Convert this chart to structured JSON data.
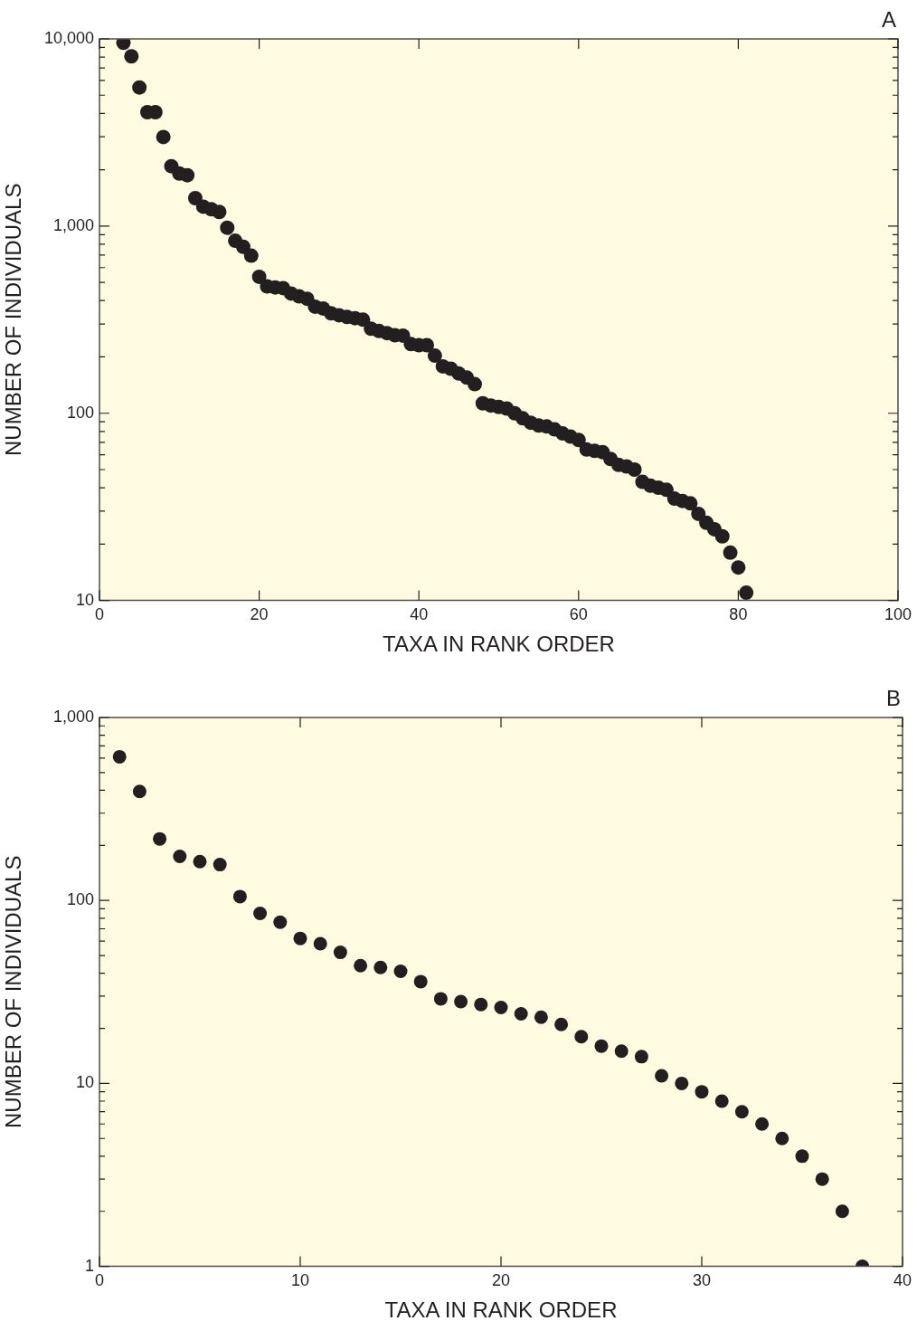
{
  "chart_data": [
    {
      "type": "scatter",
      "xlabel": "TAXA IN RANK ORDER",
      "ylabel": "NUMBER OF INDIVIDUALS",
      "annotations": [
        "A"
      ],
      "log": "y",
      "marker": "circle",
      "x": [
        3,
        4,
        5,
        6,
        7,
        8,
        9,
        10,
        11,
        12,
        13,
        14,
        15,
        16,
        17,
        18,
        19,
        20,
        21,
        22,
        23,
        24,
        25,
        26,
        27,
        28,
        29,
        30,
        31,
        32,
        33,
        34,
        35,
        36,
        37,
        38,
        39,
        40,
        41,
        42,
        43,
        44,
        45,
        46,
        47,
        48,
        49,
        50,
        51,
        52,
        53,
        54,
        55,
        56,
        57,
        58,
        59,
        60,
        61,
        62,
        63,
        64,
        65,
        66,
        67,
        68,
        69,
        70,
        71,
        72,
        73,
        74,
        75,
        76,
        77,
        78,
        79,
        80,
        81
      ],
      "series": [
        {
          "color": "#231f20",
          "values": [
            9530,
            8070,
            5500,
            4060,
            4060,
            2990,
            2090,
            1910,
            1870,
            1410,
            1270,
            1230,
            1190,
            980,
            835,
            775,
            695,
            536,
            476,
            470,
            466,
            436,
            421,
            409,
            371,
            363,
            342,
            334,
            327,
            322,
            316,
            283,
            275,
            268,
            261,
            260,
            234,
            231,
            231,
            203,
            178,
            173,
            163,
            155,
            143,
            113,
            110,
            108,
            106,
            100,
            94,
            89,
            86,
            85,
            82,
            78,
            75,
            72,
            64,
            63,
            62,
            57,
            53,
            52,
            50,
            43,
            41,
            40,
            39,
            35,
            34,
            33,
            29,
            26,
            24,
            22,
            18,
            15,
            11
          ]
        }
      ],
      "xlim": [
        0,
        100
      ],
      "xticks": [
        0,
        20,
        40,
        60,
        80,
        100
      ],
      "ylim": [
        10,
        10000
      ],
      "yticks": [
        {
          "value": 10,
          "label": "10"
        },
        {
          "value": 20,
          "label": null
        },
        {
          "value": 30,
          "label": null
        },
        {
          "value": 40,
          "label": null
        },
        {
          "value": 50,
          "label": null
        },
        {
          "value": 60,
          "label": null
        },
        {
          "value": 70,
          "label": null
        },
        {
          "value": 80,
          "label": null
        },
        {
          "value": 90,
          "label": null
        },
        {
          "value": 100,
          "label": "100"
        },
        {
          "value": 200,
          "label": null
        },
        {
          "value": 300,
          "label": null
        },
        {
          "value": 400,
          "label": null
        },
        {
          "value": 500,
          "label": null
        },
        {
          "value": 600,
          "label": null
        },
        {
          "value": 700,
          "label": null
        },
        {
          "value": 800,
          "label": null
        },
        {
          "value": 900,
          "label": null
        },
        {
          "value": 1000,
          "label": "1,000"
        },
        {
          "value": 2000,
          "label": null
        },
        {
          "value": 3000,
          "label": null
        },
        {
          "value": 4000,
          "label": null
        },
        {
          "value": 5000,
          "label": null
        },
        {
          "value": 6000,
          "label": null
        },
        {
          "value": 7000,
          "label": null
        },
        {
          "value": 8000,
          "label": null
        },
        {
          "value": 9000,
          "label": null
        },
        {
          "value": 10000,
          "label": "10,000"
        }
      ]
    },
    {
      "type": "scatter",
      "xlabel": "TAXA IN RANK ORDER",
      "ylabel": "NUMBER OF INDIVIDUALS",
      "annotations": [
        "B"
      ],
      "log": "y",
      "marker": "circle",
      "x": [
        1,
        2,
        3,
        4,
        5,
        6,
        7,
        8,
        9,
        10,
        11,
        12,
        13,
        14,
        15,
        16,
        17,
        18,
        19,
        20,
        21,
        22,
        23,
        24,
        25,
        26,
        27,
        28,
        29,
        30,
        31,
        32,
        33,
        34,
        35,
        36,
        37,
        38
      ],
      "series": [
        {
          "color": "#231f20",
          "values": [
            610,
            394,
            217,
            174,
            163,
            157,
            105,
            85,
            76,
            62,
            58,
            52,
            44,
            43,
            41,
            36,
            29,
            28,
            27,
            26,
            24,
            23,
            21,
            18,
            16,
            15,
            14,
            11,
            10,
            9,
            8,
            7,
            6,
            5,
            4,
            3,
            2,
            1
          ]
        }
      ],
      "xlim": [
        0,
        40
      ],
      "xticks": [
        0,
        10,
        20,
        30,
        40
      ],
      "ylim": [
        1,
        1000
      ],
      "yticks": [
        {
          "value": 1,
          "label": "1"
        },
        {
          "value": 2,
          "label": null
        },
        {
          "value": 3,
          "label": null
        },
        {
          "value": 4,
          "label": null
        },
        {
          "value": 5,
          "label": null
        },
        {
          "value": 6,
          "label": null
        },
        {
          "value": 7,
          "label": null
        },
        {
          "value": 8,
          "label": null
        },
        {
          "value": 9,
          "label": null
        },
        {
          "value": 10,
          "label": "10"
        },
        {
          "value": 20,
          "label": null
        },
        {
          "value": 30,
          "label": null
        },
        {
          "value": 40,
          "label": null
        },
        {
          "value": 50,
          "label": null
        },
        {
          "value": 60,
          "label": null
        },
        {
          "value": 70,
          "label": null
        },
        {
          "value": 80,
          "label": null
        },
        {
          "value": 90,
          "label": null
        },
        {
          "value": 100,
          "label": "100"
        },
        {
          "value": 200,
          "label": null
        },
        {
          "value": 300,
          "label": null
        },
        {
          "value": 400,
          "label": null
        },
        {
          "value": 500,
          "label": null
        },
        {
          "value": 600,
          "label": null
        },
        {
          "value": 700,
          "label": null
        },
        {
          "value": 800,
          "label": null
        },
        {
          "value": 900,
          "label": null
        },
        {
          "value": 1000,
          "label": "1,000"
        }
      ]
    }
  ]
}
